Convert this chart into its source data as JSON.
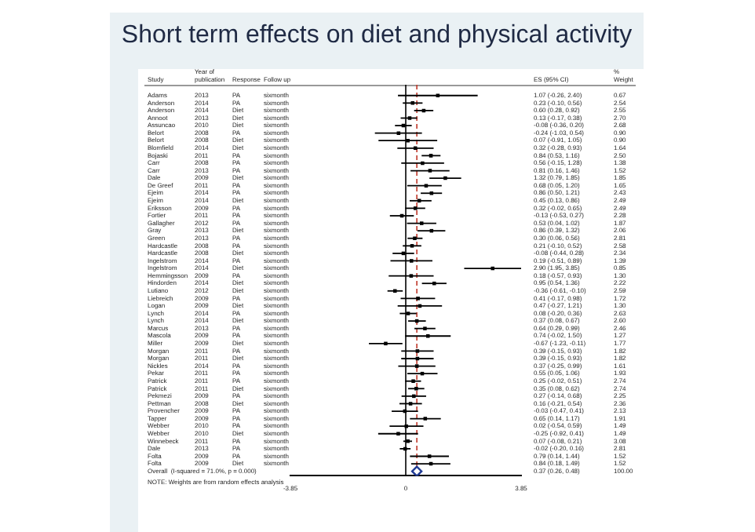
{
  "chart_data": {
    "type": "scatter",
    "orientation": "horizontal",
    "title": "Short term effects on diet and physical activity",
    "categories": [
      "Adams",
      "Anderson",
      "Anderson",
      "Annoot",
      "Assuncao",
      "Belort",
      "Belort",
      "Blomfield",
      "Bojaski",
      "Carr",
      "Carr",
      "Dale",
      "De Greef",
      "Ejeim",
      "Ejeim",
      "Eriksson",
      "Fortier",
      "Gallagher",
      "Gray",
      "Green",
      "Hardcastle",
      "Hardcastle",
      "Ingelstrom",
      "Ingelstrom",
      "Hemmingsson",
      "Hindorden",
      "Lutiano",
      "Liebreich",
      "Logan",
      "Lynch",
      "Lynch",
      "Marcus",
      "Mascola",
      "Miller",
      "Morgan",
      "Morgan",
      "Nickles",
      "Pekar",
      "Patrick",
      "Patrick",
      "Pekmezi",
      "Pettman",
      "Provencher",
      "Tapper",
      "Webber",
      "Webber",
      "Winnebeck",
      "Dale",
      "Folta",
      "Folta",
      "Overall  (I-squared = 71.0%, p = 0.000)"
    ],
    "series": [
      {
        "color": "#000000",
        "marker": "square",
        "values": [
          1.07,
          0.23,
          0.6,
          0.13,
          -0.08,
          -0.24,
          0.07,
          0.32,
          0.84,
          0.56,
          0.81,
          1.32,
          0.68,
          0.86,
          0.45,
          0.32,
          -0.13,
          0.53,
          0.86,
          0.3,
          0.21,
          -0.08,
          0.19,
          2.9,
          0.18,
          0.95,
          -0.36,
          0.41,
          0.47,
          0.08,
          0.37,
          0.64,
          0.74,
          -0.67,
          0.39,
          0.39,
          0.37,
          0.55,
          0.25,
          0.35,
          0.27,
          0.16,
          -0.03,
          0.65,
          0.02,
          -0.25,
          0.07,
          -0.02,
          0.79,
          0.84,
          null
        ],
        "errors": [
          [
            -0.26,
            2.4
          ],
          [
            -0.1,
            0.56
          ],
          [
            0.28,
            0.92
          ],
          [
            -0.17,
            0.38
          ],
          [
            -0.36,
            0.2
          ],
          [
            -1.03,
            0.54
          ],
          [
            -0.91,
            1.05
          ],
          [
            -0.28,
            0.93
          ],
          [
            0.53,
            1.16
          ],
          [
            -0.15,
            1.28
          ],
          [
            0.16,
            1.46
          ],
          [
            0.79,
            1.85
          ],
          [
            0.05,
            1.2
          ],
          [
            0.5,
            1.21
          ],
          [
            0.13,
            0.86
          ],
          [
            -0.02,
            0.65
          ],
          [
            -0.53,
            0.27
          ],
          [
            0.04,
            1.02
          ],
          [
            0.39,
            1.32
          ],
          [
            0.06,
            0.56
          ],
          [
            -0.1,
            0.52
          ],
          [
            -0.44,
            0.28
          ],
          [
            -0.51,
            0.89
          ],
          [
            1.95,
            3.85
          ],
          [
            -0.57,
            0.93
          ],
          [
            0.54,
            1.36
          ],
          [
            -0.61,
            -0.1
          ],
          [
            -0.17,
            0.98
          ],
          [
            -0.27,
            1.21
          ],
          [
            -0.2,
            0.36
          ],
          [
            0.08,
            0.67
          ],
          [
            0.29,
            0.99
          ],
          [
            -0.02,
            1.5
          ],
          [
            -1.23,
            -0.11
          ],
          [
            -0.15,
            0.93
          ],
          [
            -0.15,
            0.93
          ],
          [
            -0.25,
            0.99
          ],
          [
            0.05,
            1.06
          ],
          [
            -0.02,
            0.51
          ],
          [
            0.08,
            0.62
          ],
          [
            -0.14,
            0.68
          ],
          [
            -0.21,
            0.54
          ],
          [
            -0.47,
            0.41
          ],
          [
            0.14,
            1.17
          ],
          [
            -0.54,
            0.59
          ],
          [
            -0.92,
            0.41
          ],
          [
            -0.08,
            0.21
          ],
          [
            -0.2,
            0.16
          ],
          [
            0.14,
            1.44
          ],
          [
            0.18,
            1.49
          ],
          null
        ]
      },
      {
        "color": "#1f3a93",
        "marker": "diamond",
        "values": [
          null,
          null,
          null,
          null,
          null,
          null,
          null,
          null,
          null,
          null,
          null,
          null,
          null,
          null,
          null,
          null,
          null,
          null,
          null,
          null,
          null,
          null,
          null,
          null,
          null,
          null,
          null,
          null,
          null,
          null,
          null,
          null,
          null,
          null,
          null,
          null,
          null,
          null,
          null,
          null,
          null,
          null,
          null,
          null,
          null,
          null,
          null,
          null,
          null,
          null,
          0.37
        ],
        "errors": [
          null,
          null,
          null,
          null,
          null,
          null,
          null,
          null,
          null,
          null,
          null,
          null,
          null,
          null,
          null,
          null,
          null,
          null,
          null,
          null,
          null,
          null,
          null,
          null,
          null,
          null,
          null,
          null,
          null,
          null,
          null,
          null,
          null,
          null,
          null,
          null,
          null,
          null,
          null,
          null,
          null,
          null,
          null,
          null,
          null,
          null,
          null,
          null,
          null,
          null,
          [
            0.26,
            0.48
          ]
        ]
      }
    ],
    "value_labels": [
      "1.07 (-0.26, 2.40)",
      "0.23 (-0.10, 0.56)",
      "0.60 (0.28, 0.92)",
      "0.13 (-0.17, 0.38)",
      "-0.08 (-0.36, 0.20)",
      "-0.24 (-1.03, 0.54)",
      "0.07 (-0.91, 1.05)",
      "0.32 (-0.28, 0.93)",
      "0.84 (0.53, 1.16)",
      "0.56 (-0.15, 1.28)",
      "0.81 (0.16, 1.46)",
      "1.32 (0.79, 1.85)",
      "0.68 (0.05, 1.20)",
      "0.86 (0.50, 1.21)",
      "0.45 (0.13, 0.86)",
      "0.32 (-0.02, 0.65)",
      "-0.13 (-0.53, 0.27)",
      "0.53 (0.04, 1.02)",
      "0.86 (0.39, 1.32)",
      "0.30 (0.06, 0.56)",
      "0.21 (-0.10, 0.52)",
      "-0.08 (-0.44, 0.28)",
      "0.19 (-0.51, 0.89)",
      "2.90 (1.95, 3.85)",
      "0.18 (-0.57, 0.93)",
      "0.95 (0.54, 1.36)",
      "-0.36 (-0.61, -0.10)",
      "0.41 (-0.17, 0.98)",
      "0.47 (-0.27, 1.21)",
      "0.08 (-0.20, 0.36)",
      "0.37 (0.08, 0.67)",
      "0.64 (0.29, 0.99)",
      "0.74 (-0.02, 1.50)",
      "-0.67 (-1.23, -0.11)",
      "0.39 (-0.15, 0.93)",
      "0.39 (-0.15, 0.93)",
      "0.37 (-0.25, 0.99)",
      "0.55 (0.05, 1.06)",
      "0.25 (-0.02, 0.51)",
      "0.35 (0.08, 0.62)",
      "0.27 (-0.14, 0.68)",
      "0.16 (-0.21, 0.54)",
      "-0.03 (-0.47, 0.41)",
      "0.65 (0.14, 1.17)",
      "0.02 (-0.54, 0.59)",
      "-0.25 (-0.92, 0.41)",
      "0.07 (-0.08, 0.21)",
      "-0.02 (-0.20, 0.16)",
      "0.79 (0.14, 1.44)",
      "0.84 (0.18, 1.49)",
      "0.37 (0.26, 0.48)"
    ],
    "xlim": [
      -3.85,
      3.85
    ],
    "xticks": [
      {
        "value": -3.85,
        "label": "-3.85"
      },
      0,
      {
        "value": 3.85,
        "label": "3.85"
      }
    ],
    "ref_lines": [
      {
        "axis": "x",
        "value": 0,
        "color": "#000000",
        "line_style": "solid"
      },
      {
        "axis": "x",
        "value": 0.37,
        "color": "#c0392b",
        "line_style": "dashed"
      }
    ],
    "grid": false,
    "legend": false,
    "annotations": [
      "Study",
      "Year of\npublication",
      "Response",
      "Follow up",
      "ES (95% CI)",
      "%\nWeight",
      "NOTE: Weights are from random effects analysis",
      "2013",
      "PA",
      "sixmonth",
      "0.67",
      "2014",
      "PA",
      "sixmonth",
      "2.54",
      "2014",
      "Diet",
      "sixmonth",
      "2.55",
      "2013",
      "Diet",
      "sixmonth",
      "2.70",
      "2010",
      "Diet",
      "sixmonth",
      "2.68",
      "2008",
      "PA",
      "sixmonth",
      "0.90",
      "2008",
      "Diet",
      "sixmonth",
      "0.90",
      "2014",
      "Diet",
      "sixmonth",
      "1.64",
      "2011",
      "PA",
      "sixmonth",
      "2.50",
      "2008",
      "PA",
      "sixmonth",
      "1.38",
      "2013",
      "PA",
      "sixmonth",
      "1.52",
      "2009",
      "Diet",
      "sixmonth",
      "1.85",
      "2011",
      "PA",
      "sixmonth",
      "1.65",
      "2014",
      "PA",
      "sixmonth",
      "2.43",
      "2014",
      "Diet",
      "sixmonth",
      "2.49",
      "2009",
      "PA",
      "sixmonth",
      "2.49",
      "2011",
      "PA",
      "sixmonth",
      "2.28",
      "2012",
      "PA",
      "sixmonth",
      "1.87",
      "2013",
      "Diet",
      "sixmonth",
      "2.06",
      "2013",
      "PA",
      "sixmonth",
      "2.81",
      "2008",
      "PA",
      "sixmonth",
      "2.58",
      "2008",
      "Diet",
      "sixmonth",
      "2.34",
      "2014",
      "PA",
      "sixmonth",
      "1.39",
      "2014",
      "Diet",
      "sixmonth",
      "0.85",
      "2009",
      "PA",
      "sixmonth",
      "1.30",
      "2014",
      "Diet",
      "sixmonth",
      "2.22",
      "2012",
      "Diet",
      "sixmonth",
      "2.59",
      "2009",
      "PA",
      "sixmonth",
      "1.72",
      "2009",
      "Diet",
      "sixmonth",
      "1.30",
      "2014",
      "PA",
      "sixmonth",
      "2.63",
      "2014",
      "Diet",
      "sixmonth",
      "2.60",
      "2013",
      "PA",
      "sixmonth",
      "2.46",
      "2009",
      "PA",
      "sixmonth",
      "1.27",
      "2009",
      "Diet",
      "sixmonth",
      "1.77",
      "2011",
      "PA",
      "sixmonth",
      "1.82",
      "2011",
      "Diet",
      "sixmonth",
      "1.82",
      "2014",
      "PA",
      "sixmonth",
      "1.61",
      "2011",
      "PA",
      "sixmonth",
      "1.93",
      "2011",
      "PA",
      "sixmonth",
      "2.74",
      "2011",
      "Diet",
      "sixmonth",
      "2.74",
      "2009",
      "PA",
      "sixmonth",
      "2.25",
      "2008",
      "Diet",
      "sixmonth",
      "2.36",
      "2009",
      "PA",
      "sixmonth",
      "2.13",
      "2009",
      "PA",
      "sixmonth",
      "1.91",
      "2010",
      "PA",
      "sixmonth",
      "1.49",
      "2010",
      "Diet",
      "sixmonth",
      "1.49",
      "2011",
      "PA",
      "sixmonth",
      "3.08",
      "2013",
      "PA",
      "sixmonth",
      "2.81",
      "2009",
      "PA",
      "sixmonth",
      "1.52",
      "2009",
      "Diet",
      "sixmonth",
      "1.52",
      "100.00"
    ]
  }
}
